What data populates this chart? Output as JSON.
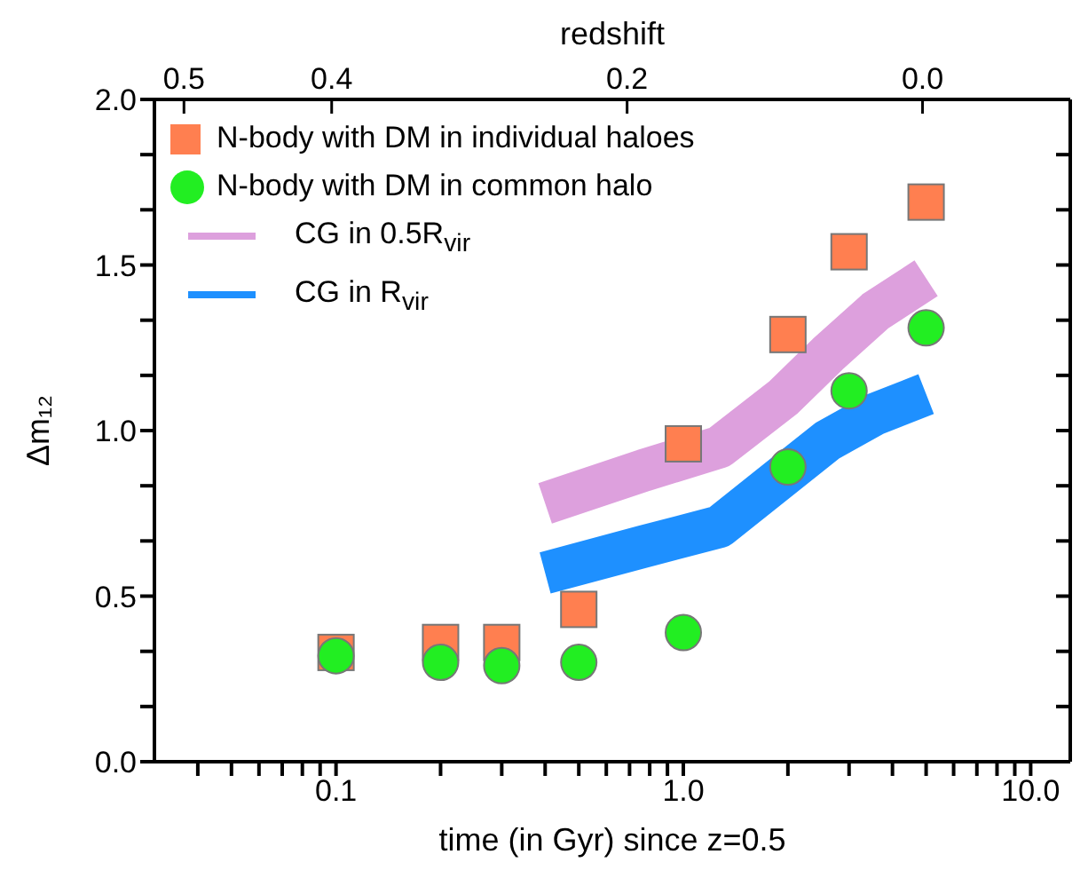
{
  "chart_data": {
    "type": "scatter",
    "xlabel": "time (in Gyr) since z=0.5",
    "ylabel": "Δm₁₂",
    "x2label": "redshift",
    "log": "x",
    "legend": "top left",
    "grid": false,
    "xlim": [
      0.03,
      13
    ],
    "ylim": [
      0,
      2
    ],
    "xticks": [
      {
        "value": 0.04,
        "label": null
      },
      {
        "value": 0.05,
        "label": null
      },
      {
        "value": 0.06,
        "label": null
      },
      {
        "value": 0.07,
        "label": null
      },
      {
        "value": 0.08,
        "label": null
      },
      {
        "value": 0.09,
        "label": null
      },
      0.1,
      {
        "value": 0.2,
        "label": null
      },
      {
        "value": 0.3,
        "label": null
      },
      {
        "value": 0.4,
        "label": null
      },
      {
        "value": 0.5,
        "label": null
      },
      {
        "value": 0.6,
        "label": null
      },
      {
        "value": 0.7,
        "label": null
      },
      {
        "value": 0.8,
        "label": null
      },
      {
        "value": 0.9,
        "label": null
      },
      {
        "value": 1,
        "label": "1.0"
      },
      {
        "value": 2,
        "label": null
      },
      {
        "value": 3,
        "label": null
      },
      {
        "value": 4,
        "label": null
      },
      {
        "value": 5,
        "label": null
      },
      {
        "value": 6,
        "label": null
      },
      {
        "value": 7,
        "label": null
      },
      {
        "value": 8,
        "label": null
      },
      {
        "value": 9,
        "label": null
      },
      {
        "value": 10,
        "label": "10.0"
      }
    ],
    "x2lim": [
      0.52,
      -0.1
    ],
    "x2ticks": [
      {
        "value": 0.5,
        "label": "0.5"
      },
      {
        "value": 0.4,
        "label": "0.4"
      },
      {
        "value": 0.2,
        "label": "0.2"
      },
      {
        "value": 0,
        "label": "0.0"
      }
    ],
    "yticks": [
      {
        "value": 0,
        "label": "0.0"
      },
      {
        "value": 0.1667,
        "label": null
      },
      {
        "value": 0.3333,
        "label": null
      },
      {
        "value": 0.5,
        "label": "0.5"
      },
      {
        "value": 0.6667,
        "label": null
      },
      {
        "value": 0.8333,
        "label": null
      },
      {
        "value": 1,
        "label": "1.0"
      },
      {
        "value": 1.1667,
        "label": null
      },
      {
        "value": 1.3333,
        "label": null
      },
      {
        "value": 1.5,
        "label": "1.5"
      },
      {
        "value": 1.6667,
        "label": null
      },
      {
        "value": 1.8333,
        "label": null
      },
      {
        "value": 2,
        "label": "2.0"
      }
    ],
    "series": [
      {
        "name": "N-body with DM in individual haloes",
        "marker": "square",
        "color": "#ff7f50",
        "x": [
          0.1,
          0.2,
          0.3,
          0.5,
          1,
          2,
          3,
          5
        ],
        "values": [
          0.33,
          0.36,
          0.36,
          0.46,
          0.96,
          1.29,
          1.54,
          1.69
        ]
      },
      {
        "name": "N-body with DM in common halo",
        "marker": "circle",
        "color": "#22ee22",
        "x": [
          0.1,
          0.2,
          0.3,
          0.5,
          1,
          2,
          3,
          5
        ],
        "values": [
          0.32,
          0.3,
          0.29,
          0.3,
          0.39,
          0.89,
          1.12,
          1.31
        ]
      },
      {
        "name": "CG in 0.5R$_{vir}$",
        "type": "line",
        "color": "#dda0dd",
        "x": [
          0.4,
          0.77,
          1.27,
          1.94,
          2.6,
          3.57,
          5
        ],
        "values": [
          0.78,
          0.88,
          0.95,
          1.1,
          1.23,
          1.36,
          1.46
        ]
      },
      {
        "name": "CG in R$_{vir}$",
        "type": "line",
        "color": "#1e90ff",
        "x": [
          0.4,
          0.77,
          1.27,
          1.94,
          2.6,
          3.57,
          5
        ],
        "values": [
          0.57,
          0.65,
          0.71,
          null,
          0.97,
          1.05,
          1.11
        ]
      }
    ]
  }
}
